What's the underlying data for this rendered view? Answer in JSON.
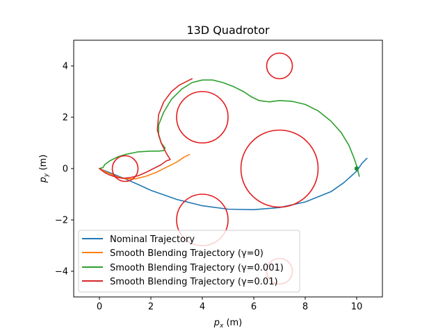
{
  "chart_data": {
    "type": "line",
    "title": "13D Quadrotor",
    "xlabel_main": "p",
    "xlabel_sub": "x",
    "xlabel_unit": " (m)",
    "ylabel_main": "p",
    "ylabel_sub": "y",
    "ylabel_unit": " (m)",
    "xlim": [
      -1,
      11
    ],
    "ylim": [
      -5,
      5
    ],
    "xticks": [
      0,
      2,
      4,
      6,
      8,
      10
    ],
    "yticks": [
      -4,
      -2,
      0,
      2,
      4
    ],
    "xtick_labels": [
      "0",
      "2",
      "4",
      "6",
      "8",
      "10"
    ],
    "ytick_labels": [
      "−4",
      "−2",
      "0",
      "2",
      "4"
    ],
    "grid": false,
    "legend_position": "lower-left",
    "obstacles": [
      {
        "cx": 1,
        "cy": 0,
        "r": 0.5
      },
      {
        "cx": 4,
        "cy": 2,
        "r": 1
      },
      {
        "cx": 7,
        "cy": 4,
        "r": 0.5
      },
      {
        "cx": 7,
        "cy": 0,
        "r": 1.5
      },
      {
        "cx": 4,
        "cy": -2,
        "r": 1
      },
      {
        "cx": 7,
        "cy": -4,
        "r": 0.5
      }
    ],
    "obstacle_color": "#e41a1c",
    "goal": {
      "x": 10,
      "y": 0,
      "color": "#1a8c3c"
    },
    "series": [
      {
        "name": "Nominal Trajectory",
        "color": "#1f77b4",
        "x": [
          0,
          0.5,
          1,
          1.5,
          2,
          3,
          4,
          5,
          6,
          7,
          8,
          9,
          9.5,
          10,
          10.2,
          10.4
        ],
        "y": [
          0,
          -0.2,
          -0.4,
          -0.62,
          -0.85,
          -1.2,
          -1.45,
          -1.58,
          -1.6,
          -1.52,
          -1.3,
          -0.9,
          -0.55,
          -0.1,
          0.2,
          0.4
        ]
      },
      {
        "name": "Smooth Blending Trajectory (γ=0)",
        "color": "#ff7f0e",
        "x": [
          0,
          0.3,
          0.6,
          1,
          1.4,
          1.8,
          2.2,
          2.6,
          3,
          3.3,
          3.5
        ],
        "y": [
          0,
          -0.15,
          -0.28,
          -0.4,
          -0.4,
          -0.3,
          -0.15,
          0.05,
          0.25,
          0.45,
          0.55
        ]
      },
      {
        "name": "Smooth Blending Trajectory (γ=0.001)",
        "color": "#2ca02c",
        "x": [
          0,
          0.15,
          0.2,
          0.4,
          0.7,
          1,
          1.5,
          2,
          2.3,
          2.5,
          2.55,
          2.4,
          2.3,
          2.3,
          2.5,
          2.8,
          3.2,
          3.6,
          4,
          4.4,
          4.8,
          5.2,
          5.6,
          5.9,
          6.2,
          6.6,
          7,
          7.5,
          8,
          8.5,
          9,
          9.4,
          9.7,
          9.9,
          10,
          10.1
        ],
        "y": [
          0,
          0.05,
          0.15,
          0.3,
          0.45,
          0.55,
          0.65,
          0.68,
          0.68,
          0.7,
          0.8,
          1.0,
          1.3,
          1.7,
          2.2,
          2.7,
          3.1,
          3.35,
          3.45,
          3.45,
          3.35,
          3.2,
          3.0,
          2.8,
          2.65,
          2.6,
          2.65,
          2.62,
          2.5,
          2.25,
          1.85,
          1.4,
          0.9,
          0.4,
          0.1,
          -0.3
        ]
      },
      {
        "name": "Smooth Blending Trajectory (γ=0.01)",
        "color": "#d62728",
        "x": [
          0,
          0.2,
          0.4,
          0.6,
          0.9,
          1.2,
          1.5,
          1.8,
          2.1,
          2.4,
          2.6,
          2.75,
          2.6,
          2.4,
          2.25,
          2.3,
          2.5,
          2.8,
          3.1,
          3.4,
          3.6
        ],
        "y": [
          0,
          -0.15,
          -0.25,
          -0.32,
          -0.38,
          -0.35,
          -0.28,
          -0.15,
          0,
          0.15,
          0.3,
          0.35,
          0.6,
          1.0,
          1.5,
          2.1,
          2.6,
          3.0,
          3.25,
          3.4,
          3.5
        ]
      }
    ]
  }
}
